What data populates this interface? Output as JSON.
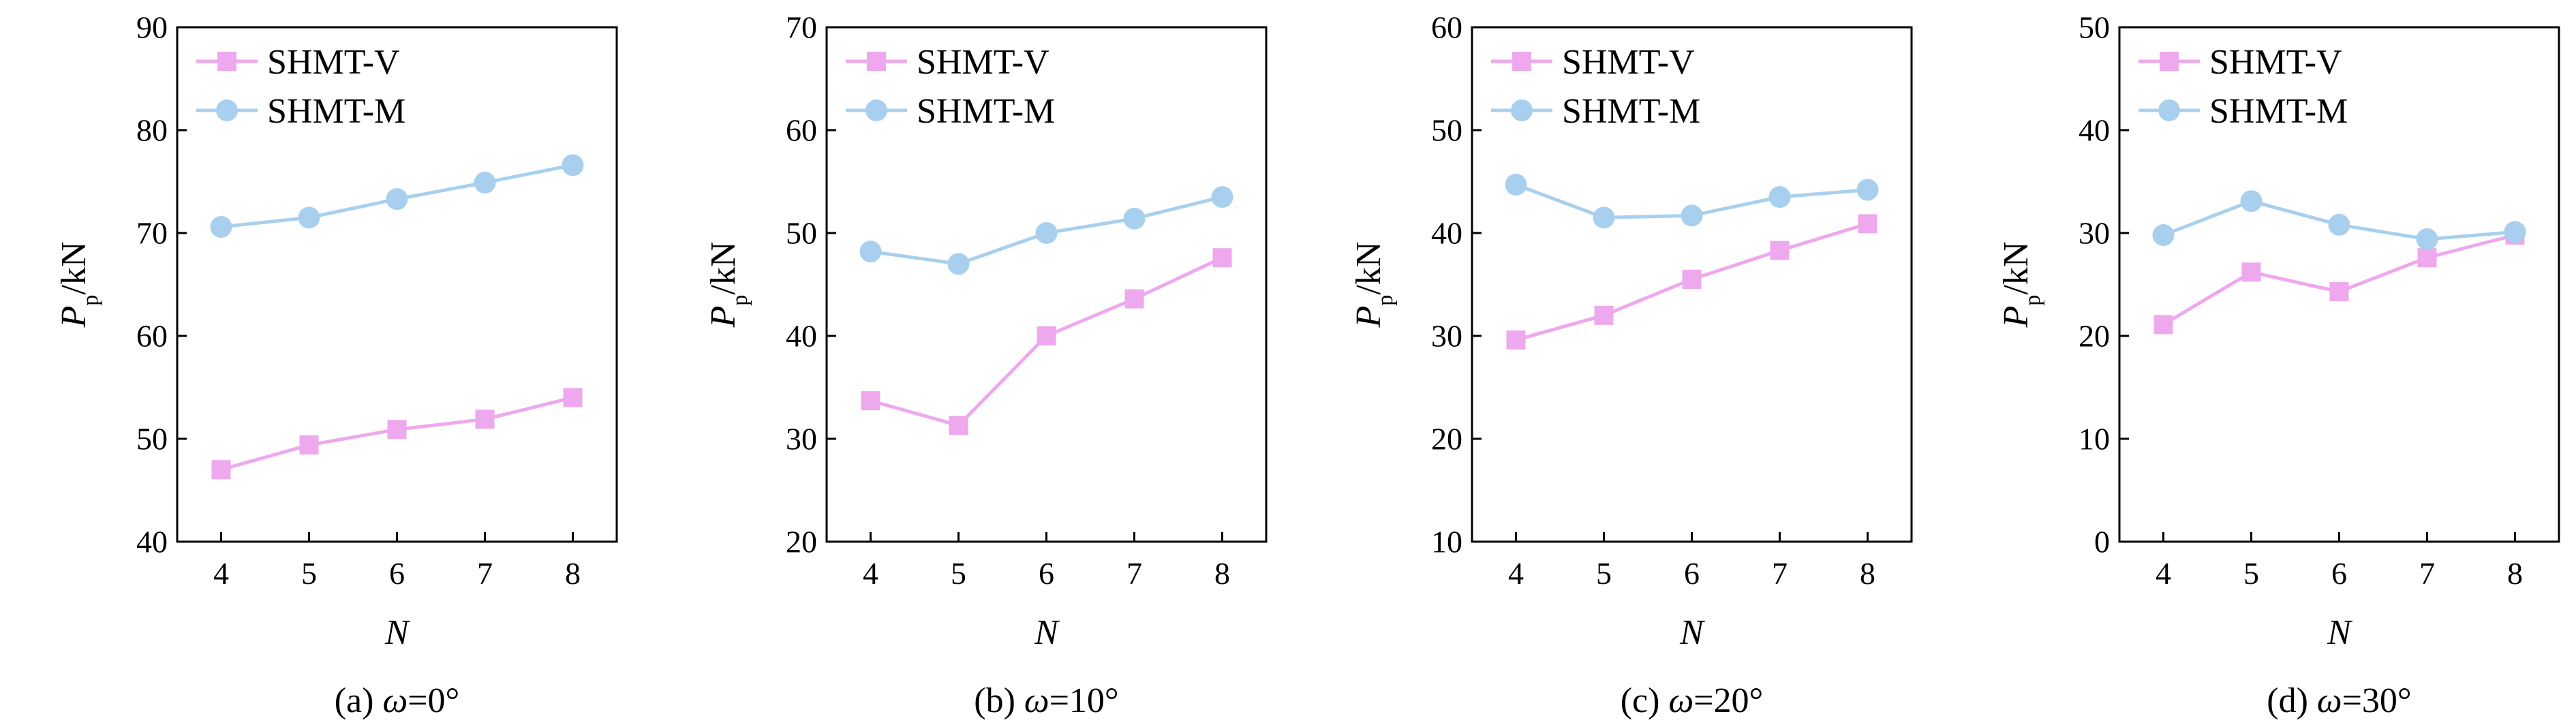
{
  "chart_data": [
    {
      "type": "line",
      "caption_prefix": "(a) ",
      "caption_symbol": "ω",
      "caption_suffix": "=0°",
      "xlabel": "N",
      "ylabel_main": "P",
      "ylabel_sub": "p",
      "ylabel_unit": "/kN",
      "categories": [
        "4",
        "5",
        "6",
        "7",
        "8"
      ],
      "ylim": [
        40,
        90
      ],
      "yticks": [
        40,
        50,
        60,
        70,
        80,
        90
      ],
      "series": [
        {
          "name": "SHMT-V",
          "marker": "square",
          "color": "#EEA8EE",
          "values": [
            47.0,
            49.4,
            50.9,
            51.9,
            54.0
          ]
        },
        {
          "name": "SHMT-M",
          "marker": "circle",
          "color": "#A8D0EE",
          "values": [
            70.6,
            71.5,
            73.3,
            74.9,
            76.6
          ]
        }
      ]
    },
    {
      "type": "line",
      "caption_prefix": "(b) ",
      "caption_symbol": "ω",
      "caption_suffix": "=10°",
      "xlabel": "N",
      "ylabel_main": "P",
      "ylabel_sub": "p",
      "ylabel_unit": "/kN",
      "categories": [
        "4",
        "5",
        "6",
        "7",
        "8"
      ],
      "ylim": [
        20,
        70
      ],
      "yticks": [
        20,
        30,
        40,
        50,
        60,
        70
      ],
      "series": [
        {
          "name": "SHMT-V",
          "marker": "square",
          "color": "#EEA8EE",
          "values": [
            33.7,
            31.3,
            40.0,
            43.6,
            47.6
          ]
        },
        {
          "name": "SHMT-M",
          "marker": "circle",
          "color": "#A8D0EE",
          "values": [
            48.2,
            47.0,
            50.0,
            51.4,
            53.5
          ]
        }
      ]
    },
    {
      "type": "line",
      "caption_prefix": "(c) ",
      "caption_symbol": "ω",
      "caption_suffix": "=20°",
      "xlabel": "N",
      "ylabel_main": "P",
      "ylabel_sub": "p",
      "ylabel_unit": "/kN",
      "categories": [
        "4",
        "5",
        "6",
        "7",
        "8"
      ],
      "ylim": [
        10,
        60
      ],
      "yticks": [
        10,
        20,
        30,
        40,
        50,
        60
      ],
      "series": [
        {
          "name": "SHMT-V",
          "marker": "square",
          "color": "#EEA8EE",
          "values": [
            29.6,
            32.0,
            35.5,
            38.3,
            40.9
          ]
        },
        {
          "name": "SHMT-M",
          "marker": "circle",
          "color": "#A8D0EE",
          "values": [
            44.7,
            41.5,
            41.7,
            43.5,
            44.2
          ]
        }
      ]
    },
    {
      "type": "line",
      "caption_prefix": "(d) ",
      "caption_symbol": "ω",
      "caption_suffix": "=30°",
      "xlabel": "N",
      "ylabel_main": "P",
      "ylabel_sub": "p",
      "ylabel_unit": "/kN",
      "categories": [
        "4",
        "5",
        "6",
        "7",
        "8"
      ],
      "ylim": [
        0,
        50
      ],
      "yticks": [
        0,
        10,
        20,
        30,
        40,
        50
      ],
      "series": [
        {
          "name": "SHMT-V",
          "marker": "square",
          "color": "#EEA8EE",
          "values": [
            21.1,
            26.2,
            24.3,
            27.6,
            29.8
          ]
        },
        {
          "name": "SHMT-M",
          "marker": "circle",
          "color": "#A8D0EE",
          "values": [
            29.8,
            33.1,
            30.8,
            29.4,
            30.1
          ]
        }
      ]
    }
  ]
}
